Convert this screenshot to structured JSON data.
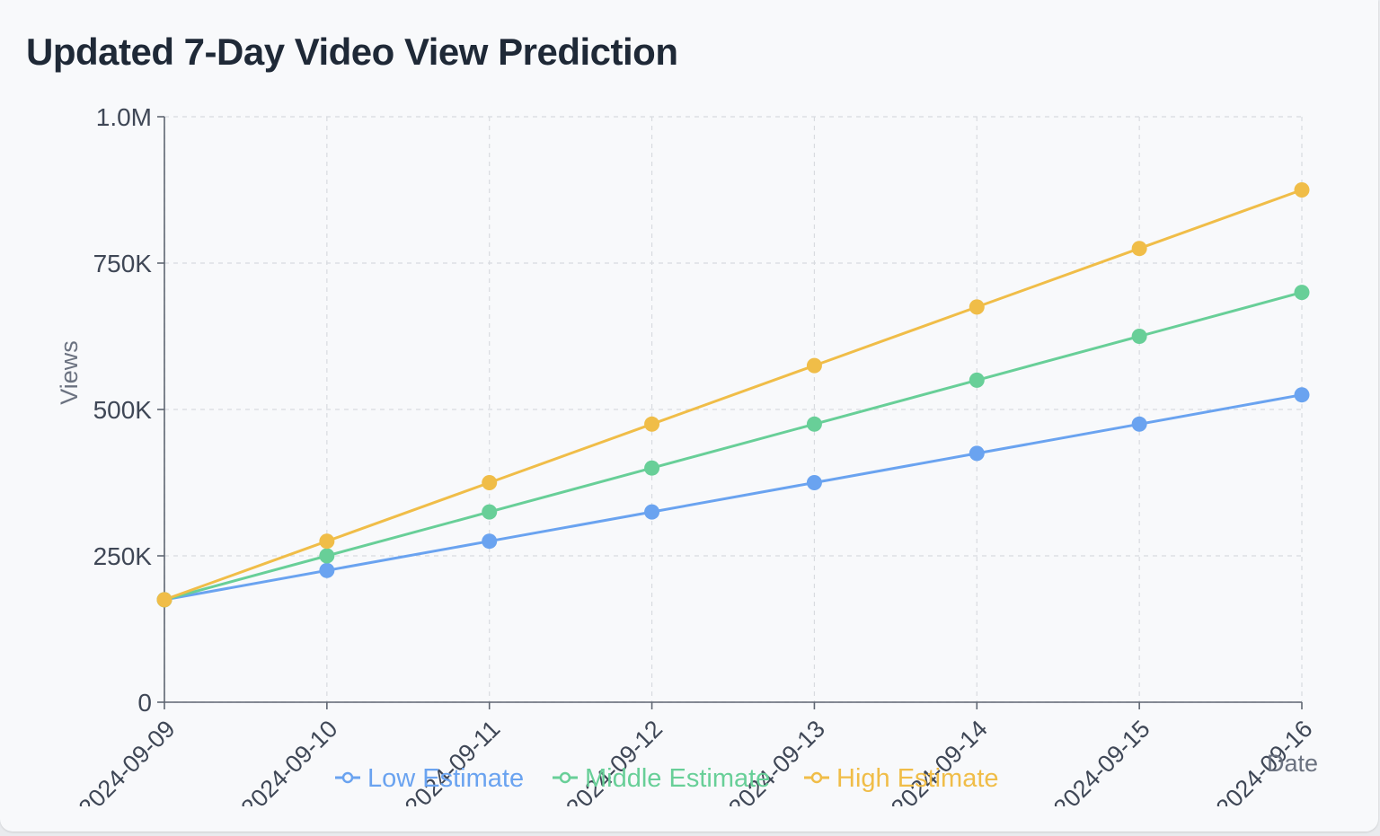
{
  "title": "Updated 7-Day Video View Prediction",
  "chart_data": {
    "type": "line",
    "title": "Updated 7-Day Video View Prediction",
    "xlabel": "Date",
    "ylabel": "Views",
    "x": [
      "2024-09-09",
      "2024-09-10",
      "2024-09-11",
      "2024-09-12",
      "2024-09-13",
      "2024-09-14",
      "2024-09-15",
      "2024-09-16"
    ],
    "x_tick_labels": [
      "2024-09-09",
      "2024-09-10",
      "2024-09-11",
      "2024-09-12",
      "2024-09-13",
      "2024-09-14",
      "2024-09-15",
      "2024-09-16"
    ],
    "ylim": [
      0,
      1000000
    ],
    "y_ticks": [
      0,
      250000,
      500000,
      750000,
      1000000
    ],
    "y_tick_labels": [
      "0",
      "250K",
      "500K",
      "750K",
      "1.0M"
    ],
    "grid": true,
    "legend_position": "bottom",
    "series": [
      {
        "name": "Low Estimate",
        "color": "#6aa3f0",
        "values": [
          175000,
          225000,
          275000,
          325000,
          375000,
          425000,
          475000,
          525000
        ]
      },
      {
        "name": "Middle Estimate",
        "color": "#68cf98",
        "values": [
          175000,
          250000,
          325000,
          400000,
          475000,
          550000,
          625000,
          700000
        ]
      },
      {
        "name": "High Estimate",
        "color": "#f0bd48",
        "values": [
          175000,
          275000,
          375000,
          475000,
          575000,
          675000,
          775000,
          875000
        ]
      }
    ]
  }
}
